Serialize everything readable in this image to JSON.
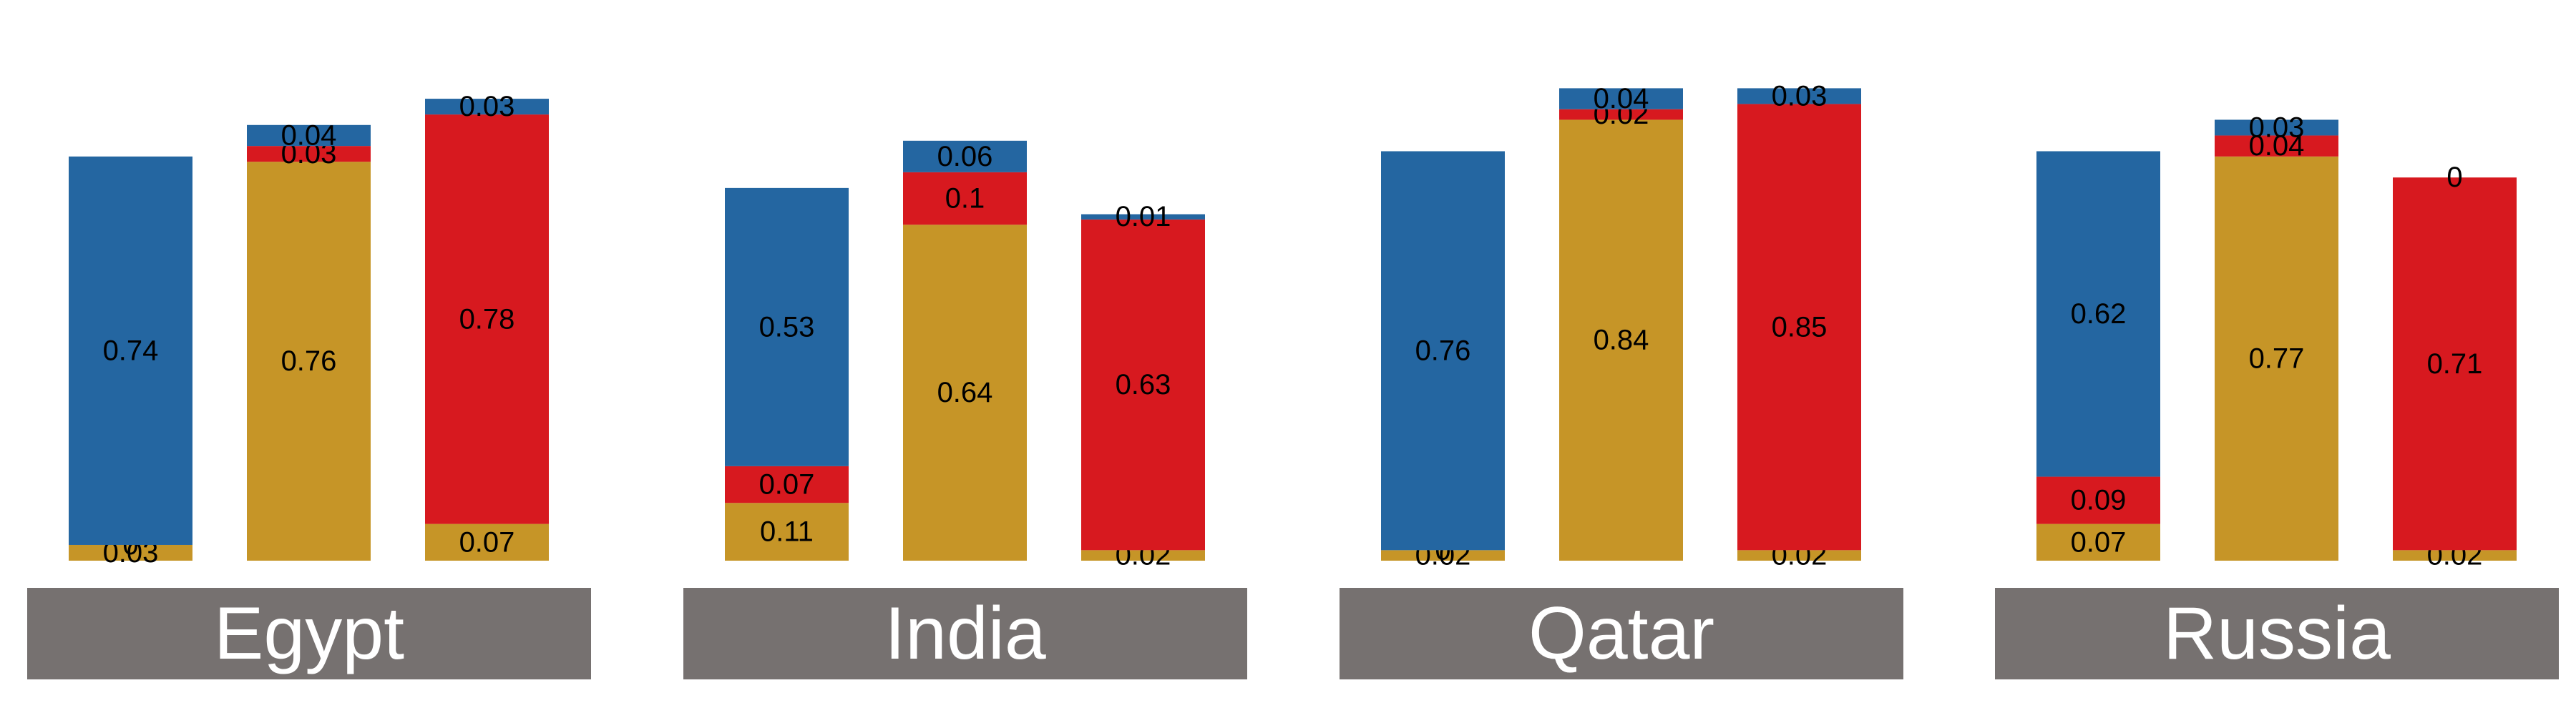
{
  "chart_data": {
    "type": "bar",
    "stacked": true,
    "grid": false,
    "legend": "none",
    "segment_order": [
      "gold",
      "red",
      "blue"
    ],
    "colors": {
      "gold": "#C69527",
      "red": "#D7191F",
      "blue": "#2466A1",
      "panel_label_bg": "#767170"
    },
    "panels": [
      {
        "label": "Egypt",
        "bars": [
          {
            "gold": 0.03,
            "red": 0,
            "blue": 0.74
          },
          {
            "gold": 0.76,
            "red": 0.03,
            "blue": 0.04
          },
          {
            "gold": 0.07,
            "red": 0.78,
            "blue": 0.03
          }
        ]
      },
      {
        "label": "India",
        "bars": [
          {
            "gold": 0.11,
            "red": 0.07,
            "blue": 0.53
          },
          {
            "gold": 0.64,
            "red": 0.1,
            "blue": 0.06
          },
          {
            "gold": 0.02,
            "red": 0.63,
            "blue": 0.01
          }
        ]
      },
      {
        "label": "Qatar",
        "bars": [
          {
            "gold": 0.02,
            "red": 0,
            "blue": 0.76
          },
          {
            "gold": 0.84,
            "red": 0.02,
            "blue": 0.04
          },
          {
            "gold": 0.02,
            "red": 0.85,
            "blue": 0.03
          }
        ]
      },
      {
        "label": "Russia",
        "bars": [
          {
            "gold": 0.07,
            "red": 0.09,
            "blue": 0.62
          },
          {
            "gold": 0.77,
            "red": 0.04,
            "blue": 0.03
          },
          {
            "gold": 0.02,
            "red": 0.71,
            "blue": 0
          }
        ]
      }
    ]
  }
}
